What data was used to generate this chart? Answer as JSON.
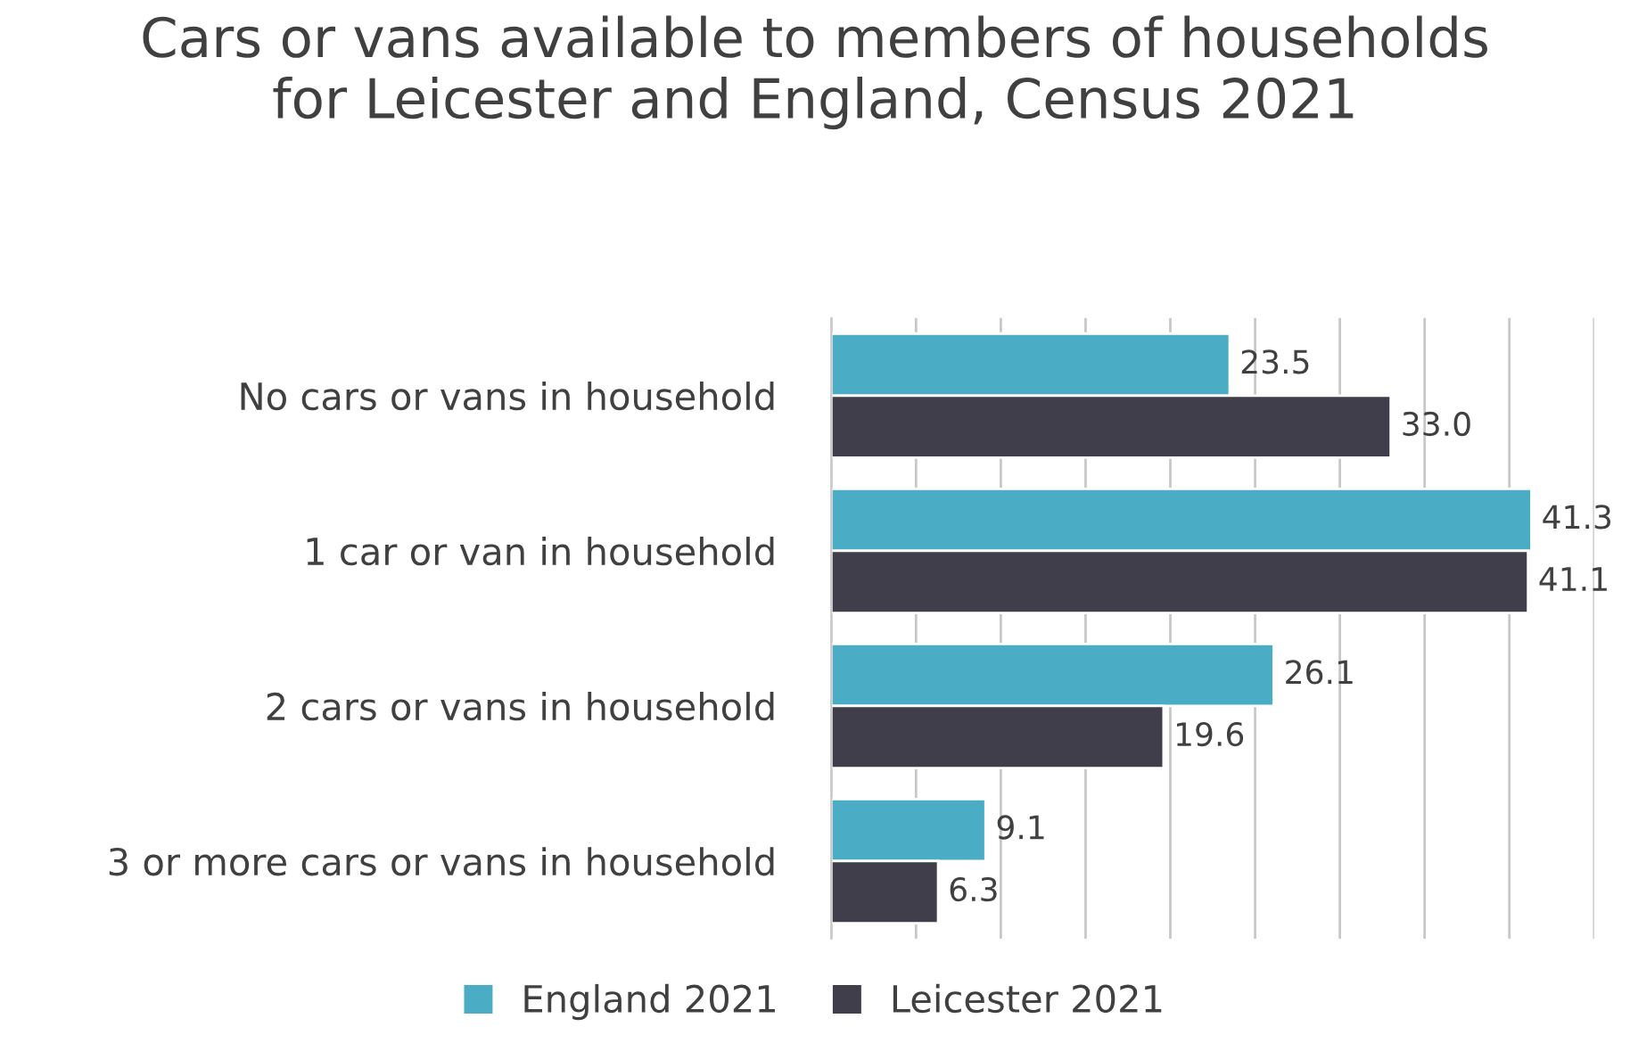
{
  "chart_data": {
    "type": "bar",
    "orientation": "horizontal",
    "title": "Cars or vans available to members of households for Leicester and England, Census 2021",
    "categories": [
      "No cars or vans in household",
      "1 car or van in household",
      "2 cars or vans in household",
      "3 or more cars or vans in household"
    ],
    "series": [
      {
        "name": "England 2021",
        "color": "#4bacc6",
        "values": [
          23.5,
          41.3,
          26.1,
          9.1
        ],
        "value_labels": [
          "23.5",
          "41.3",
          "26.1",
          "9.1"
        ]
      },
      {
        "name": "Leicester 2021",
        "color": "#3f3e4a",
        "values": [
          33.0,
          41.1,
          19.6,
          6.3
        ],
        "value_labels": [
          "33.0",
          "41.1",
          "19.6",
          "6.3"
        ]
      }
    ],
    "xlim": [
      0,
      45
    ],
    "xticks": [
      {
        "value": 0,
        "label": null
      },
      {
        "value": 5,
        "label": null
      },
      {
        "value": 10,
        "label": null
      },
      {
        "value": 15,
        "label": null
      },
      {
        "value": 20,
        "label": null
      },
      {
        "value": 25,
        "label": null
      },
      {
        "value": 30,
        "label": null
      },
      {
        "value": 35,
        "label": null
      },
      {
        "value": 40,
        "label": null
      },
      {
        "value": 45,
        "label": null
      }
    ],
    "grid": "x",
    "legend": "bottom",
    "tick_labels": "y"
  }
}
